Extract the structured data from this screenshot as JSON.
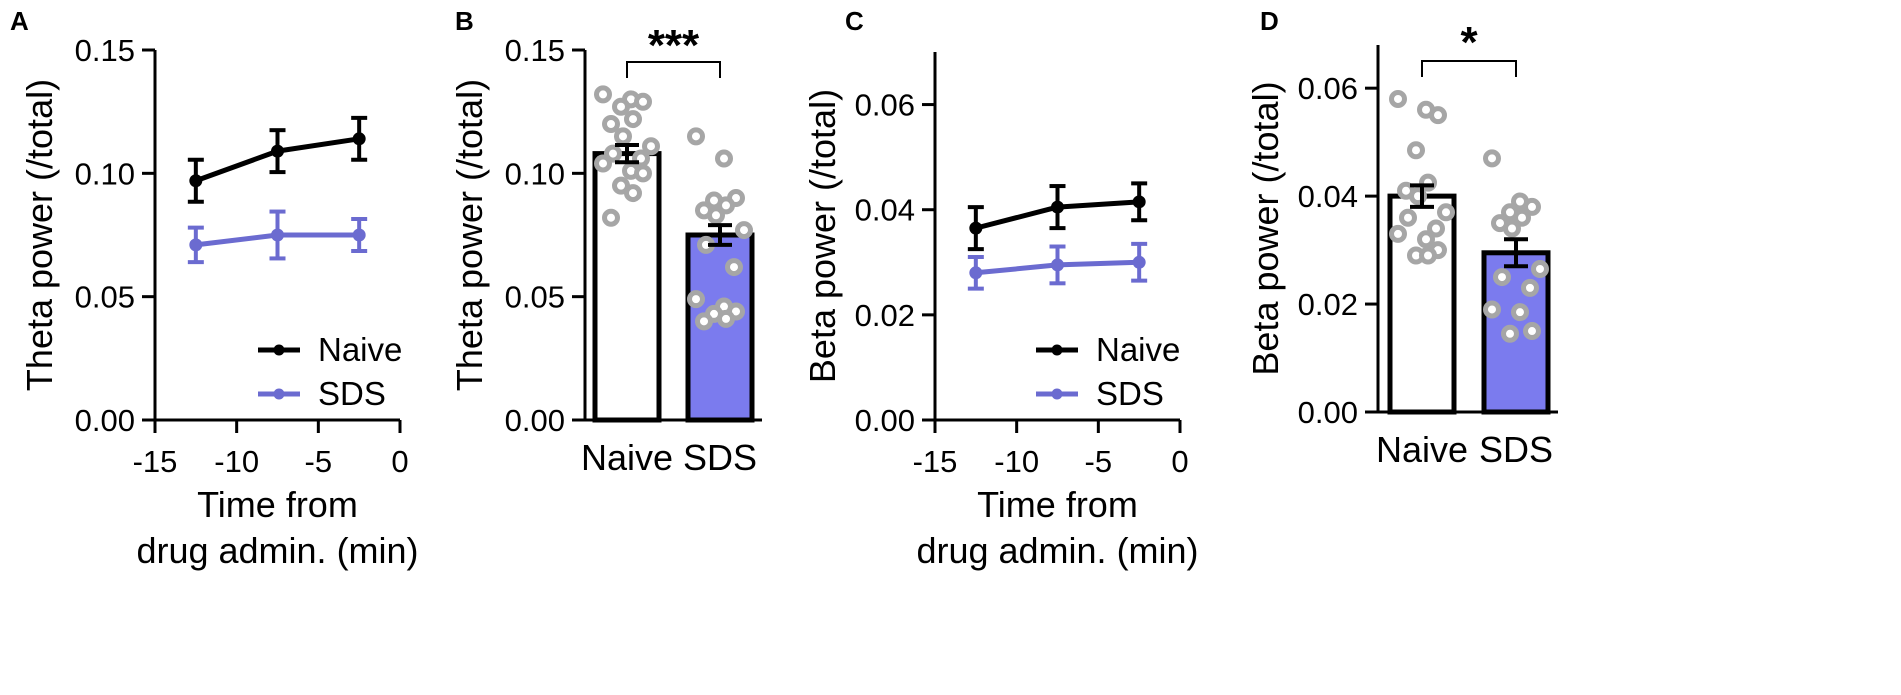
{
  "colors": {
    "naive": "#000000",
    "sds": "#6b6bd0",
    "sds_bar": "#7b7bee",
    "dots": "#a6a6a6"
  },
  "chart_data": [
    {
      "panel": "A",
      "type": "line",
      "xlabel": [
        "Time from",
        "drug admin. (min)"
      ],
      "ylabel": "Theta power (/total)",
      "xlim": [
        -15,
        0
      ],
      "ylim": [
        0,
        0.15
      ],
      "xticks": [
        -15,
        -10,
        -5,
        0
      ],
      "xtick_labels": [
        "-15",
        "-10",
        "-5",
        "0"
      ],
      "yticks": [
        0,
        0.05,
        0.1,
        0.15
      ],
      "ytick_labels": [
        "0.00",
        "0.05",
        "0.10",
        "0.15"
      ],
      "legend": "bottom-right",
      "x": [
        -12.5,
        -7.5,
        -2.5
      ],
      "series": [
        {
          "name": "Naive",
          "values": [
            0.097,
            0.109,
            0.114
          ],
          "errors": [
            0.0085,
            0.0085,
            0.0085
          ],
          "color_key": "naive"
        },
        {
          "name": "SDS",
          "values": [
            0.071,
            0.075,
            0.075
          ],
          "errors": [
            0.007,
            0.0095,
            0.0065
          ],
          "color_key": "sds"
        }
      ]
    },
    {
      "panel": "B",
      "type": "bar",
      "ylabel": "Theta power (/total)",
      "ylim": [
        0,
        0.15
      ],
      "yticks": [
        0,
        0.05,
        0.1,
        0.15
      ],
      "ytick_labels": [
        "0.00",
        "0.05",
        "0.10",
        "0.15"
      ],
      "categories": [
        "Naive",
        "SDS"
      ],
      "values": [
        0.108,
        0.075
      ],
      "errors": [
        0.0035,
        0.004
      ],
      "significance": "***",
      "points": [
        [
          0.132,
          0.13,
          0.129,
          0.127,
          0.122,
          0.12,
          0.115,
          0.111,
          0.108,
          0.106,
          0.104,
          0.101,
          0.1,
          0.095,
          0.092,
          0.082
        ],
        [
          0.115,
          0.106,
          0.09,
          0.089,
          0.087,
          0.085,
          0.083,
          0.077,
          0.071,
          0.062,
          0.049,
          0.046,
          0.044,
          0.043,
          0.041,
          0.04
        ]
      ]
    },
    {
      "panel": "C",
      "type": "line",
      "xlabel": [
        "Time from",
        "drug admin. (min)"
      ],
      "ylabel": "Beta power (/total)",
      "xlim": [
        -15,
        0
      ],
      "ylim": [
        0,
        0.07
      ],
      "xticks": [
        -15,
        -10,
        -5,
        0
      ],
      "xtick_labels": [
        "-15",
        "-10",
        "-5",
        "0"
      ],
      "yticks": [
        0,
        0.02,
        0.04,
        0.06
      ],
      "ytick_labels": [
        "0.00",
        "0.02",
        "0.04",
        "0.06"
      ],
      "legend": "bottom-right",
      "x": [
        -12.5,
        -7.5,
        -2.5
      ],
      "series": [
        {
          "name": "Naive",
          "values": [
            0.0365,
            0.0405,
            0.0415
          ],
          "errors": [
            0.004,
            0.004,
            0.0035
          ],
          "color_key": "naive"
        },
        {
          "name": "SDS",
          "values": [
            0.028,
            0.0295,
            0.03
          ],
          "errors": [
            0.003,
            0.0035,
            0.0035
          ],
          "color_key": "sds"
        }
      ]
    },
    {
      "panel": "D",
      "type": "bar",
      "ylabel": "Beta power (/total)",
      "ylim": [
        0,
        0.068
      ],
      "yticks": [
        0,
        0.02,
        0.04,
        0.06
      ],
      "ytick_labels": [
        "0.00",
        "0.02",
        "0.04",
        "0.06"
      ],
      "categories": [
        "Naive",
        "SDS"
      ],
      "values": [
        0.04,
        0.0295
      ],
      "errors": [
        0.002,
        0.0025
      ],
      "significance": "*",
      "points": [
        [
          0.058,
          0.056,
          0.055,
          0.0485,
          0.0425,
          0.041,
          0.04,
          0.037,
          0.036,
          0.034,
          0.033,
          0.032,
          0.03,
          0.029,
          0.029
        ],
        [
          0.047,
          0.039,
          0.038,
          0.037,
          0.036,
          0.035,
          0.034,
          0.0265,
          0.025,
          0.023,
          0.019,
          0.0185,
          0.015,
          0.0145
        ]
      ]
    }
  ]
}
